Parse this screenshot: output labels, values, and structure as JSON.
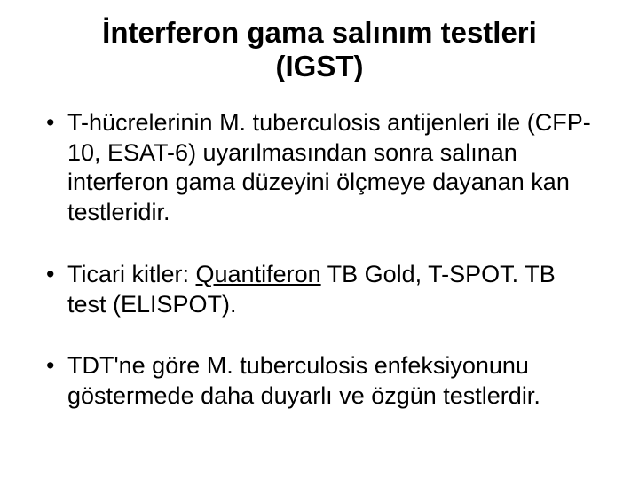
{
  "slide": {
    "title_line1": "İnterferon gama salınım testleri",
    "title_line2": "(IGST)",
    "title_fontsize": 33,
    "bullet_fontsize": 27,
    "bullets": [
      {
        "text": "T-hücrelerinin M. tuberculosis antijenleri ile (CFP-10, ESAT-6) uyarılmasından sonra salınan interferon gama düzeyini ölçmeye dayanan kan testleridir."
      },
      {
        "prefix": "Ticari kitler: ",
        "underlined": "Quantiferon",
        "suffix": " TB Gold, T-SPOT. TB test (ELISPOT)."
      },
      {
        "text": "TDT'ne göre M. tuberculosis enfeksiyonunu göstermede daha  duyarlı ve özgün testlerdir."
      }
    ],
    "colors": {
      "background": "#ffffff",
      "text": "#000000"
    },
    "font_family": "Comic Sans MS"
  }
}
